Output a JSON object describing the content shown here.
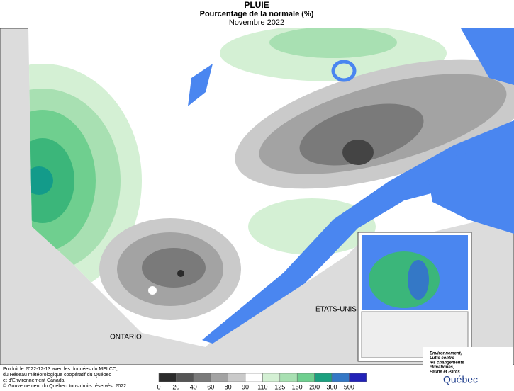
{
  "header": {
    "title": "PLUIE",
    "subtitle": "Pourcentage de la normale (%)",
    "period": "Novembre 2022"
  },
  "map": {
    "labels": [
      "ONTARIO",
      "ÉTATS-UNIS"
    ]
  },
  "legend": {
    "ticks": [
      0,
      20,
      40,
      60,
      80,
      90,
      110,
      125,
      150,
      200,
      300,
      500
    ],
    "colors": [
      "#2b2b2b",
      "#555555",
      "#7a7a7a",
      "#a3a3a3",
      "#cacaca",
      "#ffffff",
      "#d4f0d4",
      "#a8e0b2",
      "#6fcf8f",
      "#1ba07f",
      "#3478c6",
      "#2222b8"
    ]
  },
  "footer": {
    "credits": [
      "Produit le 2022-12-13 avec les données du MELCC,",
      "du Réseau météorologique coopératif du Québec",
      "et d'Environnement Canada."
    ],
    "copyright": "© Gouvernement du Québec, tous droits réservés, 2022"
  },
  "logo": {
    "ministry": [
      "Environnement,",
      "Lutte contre",
      "les changements",
      "climatiques,",
      "Faune et Parcs"
    ],
    "name": "Québec"
  }
}
